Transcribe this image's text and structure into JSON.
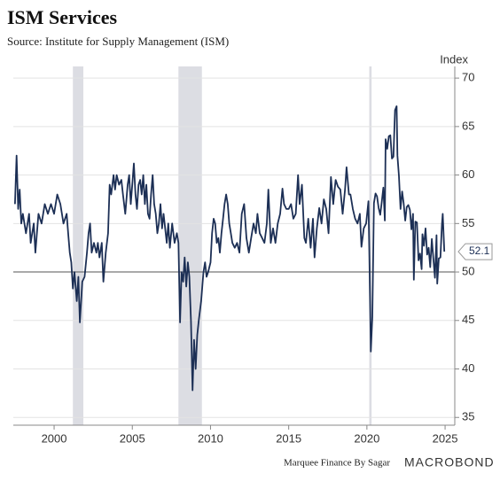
{
  "chart_data": {
    "type": "line",
    "title": "ISM Services",
    "subtitle": "Source: Institute for Supply Management (ISM)",
    "y_axis_label": "Index",
    "footer": "Marquee Finance By Sagar",
    "logo": "MACROBOND",
    "xlim": [
      1997.39,
      2025.62
    ],
    "xticks": [
      2000,
      2005,
      2010,
      2015,
      2020,
      2025
    ],
    "ylim": [
      34.2,
      71.2
    ],
    "yticks": [
      35,
      40,
      45,
      50,
      55,
      60,
      65,
      70
    ],
    "reference_line": 50,
    "grid": true,
    "recessions": [
      [
        2001.2,
        2001.87
      ],
      [
        2007.95,
        2009.45
      ],
      [
        2020.15,
        2020.3
      ]
    ],
    "recession_color": "#dcdde3",
    "x": [
      1997.5,
      1997.6,
      1997.7,
      1997.8,
      1997.9,
      1998.0,
      1998.2,
      1998.4,
      1998.5,
      1998.7,
      1998.8,
      1999.0,
      1999.2,
      1999.4,
      1999.6,
      1999.8,
      2000.0,
      2000.2,
      2000.4,
      2000.6,
      2000.8,
      2000.9,
      2001.0,
      2001.1,
      2001.2,
      2001.3,
      2001.45,
      2001.55,
      2001.65,
      2001.8,
      2001.95,
      2002.1,
      2002.2,
      2002.3,
      2002.4,
      2002.55,
      2002.7,
      2002.8,
      2002.9,
      2003.05,
      2003.15,
      2003.3,
      2003.45,
      2003.55,
      2003.65,
      2003.8,
      2003.9,
      2004.0,
      2004.15,
      2004.3,
      2004.4,
      2004.55,
      2004.7,
      2004.8,
      2004.9,
      2005.0,
      2005.1,
      2005.2,
      2005.3,
      2005.4,
      2005.5,
      2005.6,
      2005.7,
      2005.8,
      2005.9,
      2006.0,
      2006.1,
      2006.2,
      2006.3,
      2006.4,
      2006.5,
      2006.6,
      2006.7,
      2006.8,
      2006.9,
      2007.0,
      2007.2,
      2007.3,
      2007.4,
      2007.55,
      2007.7,
      2007.85,
      2007.95,
      2008.05,
      2008.15,
      2008.25,
      2008.35,
      2008.45,
      2008.55,
      2008.65,
      2008.75,
      2008.85,
      2008.95,
      2009.05,
      2009.15,
      2009.25,
      2009.4,
      2009.55,
      2009.65,
      2009.75,
      2009.85,
      2010.0,
      2010.1,
      2010.2,
      2010.3,
      2010.4,
      2010.5,
      2010.6,
      2010.7,
      2010.8,
      2010.9,
      2011.0,
      2011.1,
      2011.2,
      2011.3,
      2011.4,
      2011.55,
      2011.7,
      2011.85,
      2012.0,
      2012.15,
      2012.3,
      2012.45,
      2012.6,
      2012.75,
      2012.9,
      2013.0,
      2013.15,
      2013.3,
      2013.45,
      2013.6,
      2013.7,
      2013.85,
      2014.0,
      2014.15,
      2014.3,
      2014.45,
      2014.6,
      2014.7,
      2014.85,
      2015.0,
      2015.15,
      2015.3,
      2015.45,
      2015.6,
      2015.7,
      2015.85,
      2016.0,
      2016.1,
      2016.25,
      2016.4,
      2016.55,
      2016.65,
      2016.8,
      2016.95,
      2017.1,
      2017.25,
      2017.4,
      2017.55,
      2017.7,
      2017.85,
      2018.0,
      2018.15,
      2018.3,
      2018.45,
      2018.6,
      2018.7,
      2018.85,
      2018.95,
      2019.1,
      2019.25,
      2019.4,
      2019.55,
      2019.65,
      2019.8,
      2019.95,
      2020.1,
      2020.15,
      2020.25,
      2020.35,
      2020.45,
      2020.55,
      2020.65,
      2020.75,
      2020.85,
      2020.95,
      2021.05,
      2021.15,
      2021.2,
      2021.3,
      2021.4,
      2021.5,
      2021.6,
      2021.7,
      2021.8,
      2021.9,
      2021.95,
      2022.05,
      2022.15,
      2022.25,
      2022.35,
      2022.45,
      2022.55,
      2022.65,
      2022.75,
      2022.85,
      2022.95,
      2023.0,
      2023.1,
      2023.2,
      2023.3,
      2023.4,
      2023.5,
      2023.55,
      2023.65,
      2023.75,
      2023.85,
      2023.95,
      2024.05,
      2024.15,
      2024.25,
      2024.35,
      2024.45,
      2024.5,
      2024.6,
      2024.7,
      2024.8,
      2024.85,
      2024.95
    ],
    "series": [
      {
        "name": "ISM Services",
        "color": "#1c2f55",
        "values": [
          57,
          62,
          56.5,
          58.5,
          55,
          56,
          54,
          56,
          53,
          55,
          52,
          56,
          55,
          57,
          56,
          57,
          56,
          58,
          57,
          55,
          56,
          54,
          52,
          51,
          48.3,
          50,
          47,
          49.5,
          44.8,
          49,
          49.5,
          52,
          54,
          55,
          52,
          53,
          52,
          53,
          51.5,
          53,
          49,
          52,
          54,
          59,
          58,
          60,
          58.5,
          60,
          59,
          59.5,
          58,
          56,
          59,
          60,
          57,
          59,
          61.2,
          58,
          56.5,
          59,
          59.5,
          58,
          60,
          57,
          59,
          56,
          55.5,
          58,
          60,
          57,
          56,
          54,
          55,
          57,
          54.5,
          56,
          53,
          55,
          52.5,
          55,
          53,
          54,
          53,
          44.8,
          50,
          49,
          51.5,
          48.5,
          51,
          49.5,
          45,
          37.8,
          43,
          40,
          43.5,
          45,
          47,
          50,
          51,
          49.5,
          50,
          51,
          54,
          55.5,
          55,
          53,
          53.5,
          52,
          54,
          55.5,
          57,
          58,
          57,
          55,
          54,
          53,
          52.5,
          53,
          52,
          56,
          57,
          53.5,
          52,
          53.5,
          55,
          54,
          56,
          54,
          53.5,
          53,
          55,
          58.5,
          53,
          54.5,
          53,
          55,
          56,
          58.6,
          57,
          56.5,
          56.5,
          57,
          55.5,
          56,
          60,
          57,
          59,
          53.5,
          53,
          55.5,
          52.5,
          55.5,
          51.5,
          54.5,
          56.6,
          55,
          57.5,
          56.5,
          54,
          59.8,
          57,
          59.5,
          58.8,
          58.5,
          56,
          58.5,
          60.8,
          58,
          58,
          56.5,
          55.5,
          55,
          56,
          52.6,
          54.5,
          55,
          57.3,
          52.5,
          41.8,
          45.4,
          57.1,
          58.1,
          57.8,
          56.6,
          55.9,
          57.2,
          58.7,
          55.3,
          63.7,
          62.7,
          64,
          64.1,
          61.7,
          61.9,
          66.7,
          67.1,
          62,
          59.9,
          56.5,
          58.3,
          57.1,
          55.3,
          56.7,
          56.9,
          56.4,
          54.4,
          56,
          49.2,
          55.2,
          55.1,
          51.2,
          51.9,
          50.3,
          53.9,
          52.7,
          54.5,
          51.8,
          52.5,
          50.5,
          53.4,
          51.4,
          49.4,
          53.8,
          48.8,
          51.4,
          51.5,
          54.9,
          56,
          52.1
        ]
      }
    ]
  }
}
